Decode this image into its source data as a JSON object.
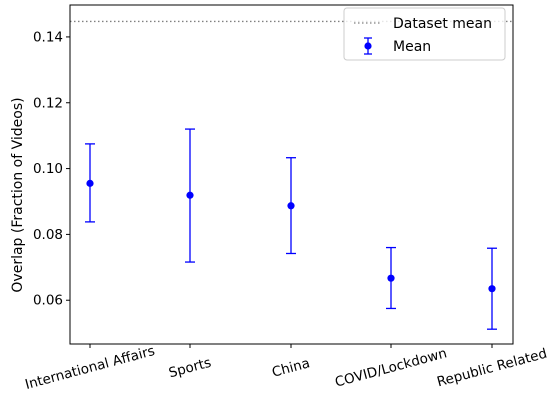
{
  "chart_data": {
    "type": "scatter",
    "title": "",
    "xlabel": "",
    "ylabel": "Overlap (Fraction of Videos)",
    "categories": [
      "International Affairs",
      "Sports",
      "China",
      "COVID/Lockdown",
      "Republic Related"
    ],
    "series": [
      {
        "name": "Mean",
        "values": [
          0.0955,
          0.0919,
          0.0887,
          0.0667,
          0.0635
        ],
        "err_low": [
          0.0838,
          0.0716,
          0.0742,
          0.0575,
          0.0512
        ],
        "err_high": [
          0.1075,
          0.112,
          0.1033,
          0.076,
          0.0758
        ],
        "color": "#0000ff"
      }
    ],
    "reference_line": {
      "name": "Dataset mean",
      "value": 0.1447,
      "color": "#808080",
      "style": "dotted"
    },
    "ylim": [
      0.0467,
      0.1497
    ],
    "yticks": [
      "0.06",
      "0.08",
      "0.10",
      "0.12",
      "0.14"
    ],
    "ytick_values": [
      0.06,
      0.08,
      0.1,
      0.12,
      0.14
    ],
    "grid": false,
    "legend_position": "top-right",
    "legend": [
      "Dataset mean",
      "Mean"
    ]
  }
}
